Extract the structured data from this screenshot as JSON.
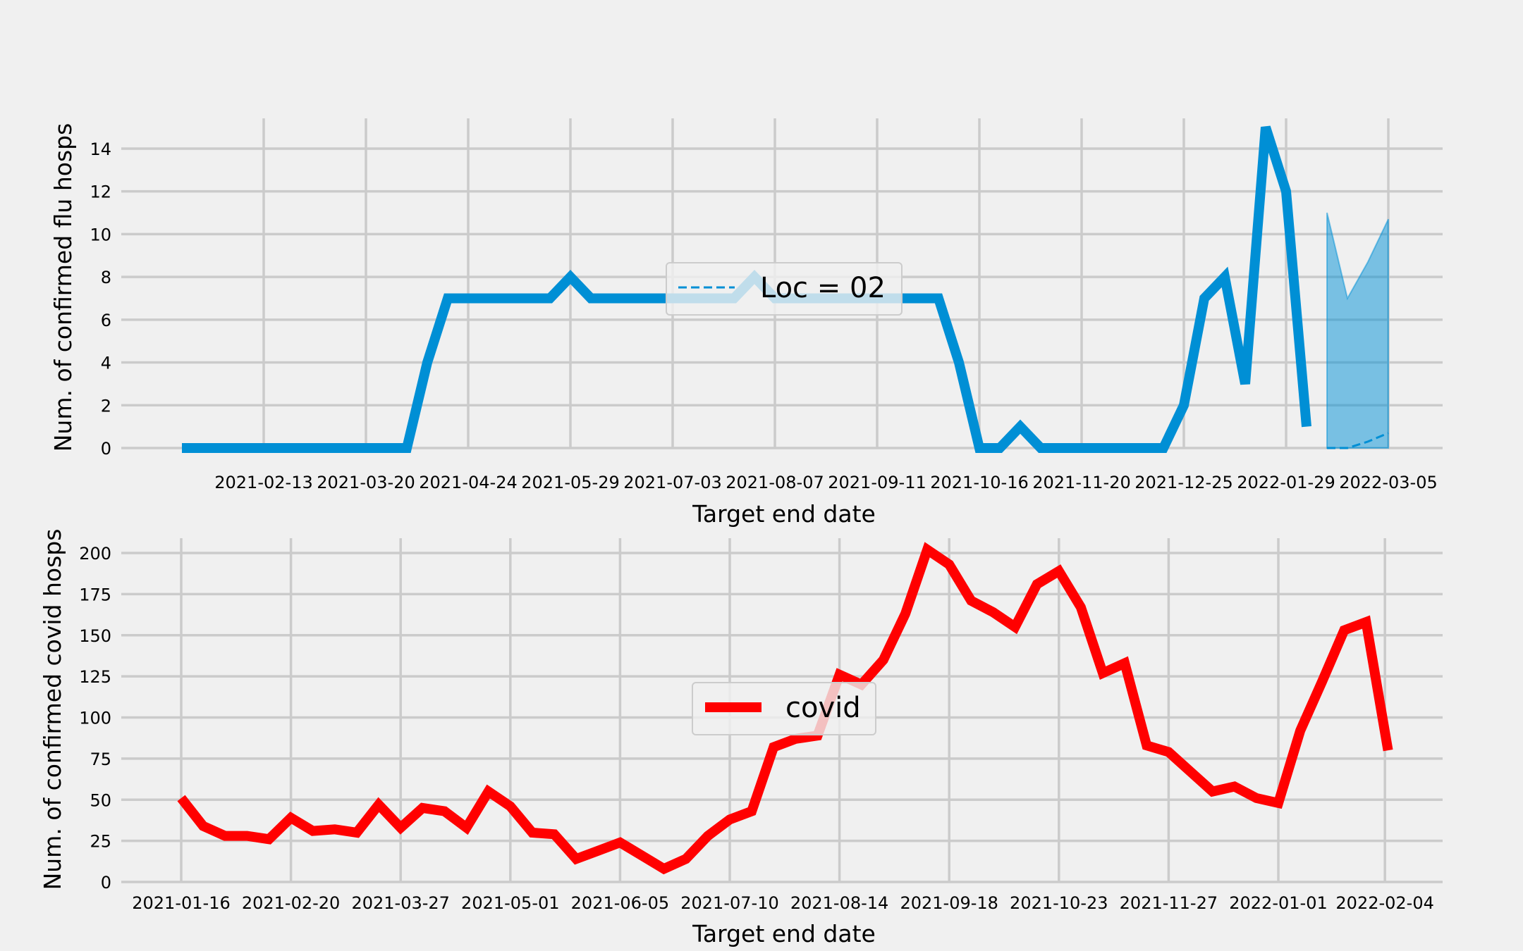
{
  "chart_data": [
    {
      "type": "line",
      "xlabel": "Target end date",
      "ylabel": "Num. of confirmed flu hosps",
      "ylim": [
        0,
        15.5
      ],
      "y_ticks": [
        0,
        2,
        4,
        6,
        8,
        10,
        12,
        14
      ],
      "x_tick_labels": [
        "2021-02-13",
        "2021-03-20",
        "2021-04-24",
        "2021-05-29",
        "2021-07-03",
        "2021-08-07",
        "2021-09-11",
        "2021-10-16",
        "2021-11-20",
        "2021-12-25",
        "2022-01-29",
        "2022-03-05"
      ],
      "grid": true,
      "legend": {
        "position": "center",
        "entries": [
          "Loc = 02"
        ]
      },
      "colors": {
        "observed": "#008fd5",
        "band": "#008fd5"
      },
      "series": [
        {
          "kind": "observed",
          "color": "#008fd5",
          "x": [
            "2021-01-16",
            "2021-01-23",
            "2021-01-30",
            "2021-02-06",
            "2021-02-13",
            "2021-02-20",
            "2021-02-27",
            "2021-03-06",
            "2021-03-13",
            "2021-03-20",
            "2021-03-27",
            "2021-04-03",
            "2021-04-10",
            "2021-04-17",
            "2021-04-24",
            "2021-05-01",
            "2021-05-08",
            "2021-05-15",
            "2021-05-22",
            "2021-05-29",
            "2021-06-05",
            "2021-06-12",
            "2021-06-19",
            "2021-06-26",
            "2021-07-03",
            "2021-07-10",
            "2021-07-17",
            "2021-07-24",
            "2021-07-31",
            "2021-08-07",
            "2021-08-14",
            "2021-08-21",
            "2021-08-28",
            "2021-09-04",
            "2021-09-11",
            "2021-09-18",
            "2021-09-25",
            "2021-10-02",
            "2021-10-09",
            "2021-10-16",
            "2021-10-23",
            "2021-10-30",
            "2021-11-06",
            "2021-11-13",
            "2021-11-20",
            "2021-11-27",
            "2021-12-04",
            "2021-12-11",
            "2021-12-18",
            "2021-12-25",
            "2022-01-01",
            "2022-01-08",
            "2022-01-15",
            "2022-01-22",
            "2022-01-29",
            "2022-02-05"
          ],
          "y": [
            0,
            0,
            0,
            0,
            0,
            0,
            0,
            0,
            0,
            0,
            0,
            0,
            4,
            7,
            7,
            7,
            7,
            7,
            7,
            8,
            7,
            7,
            7,
            7,
            7,
            7,
            7,
            7,
            8,
            7,
            7,
            7,
            7,
            7,
            7,
            7,
            7,
            7,
            4,
            0,
            0,
            1,
            0,
            0,
            0,
            0,
            0,
            0,
            0,
            2,
            7,
            8,
            3,
            15,
            12,
            1
          ]
        },
        {
          "kind": "forecast",
          "name": "Loc = 02",
          "style": "dashed",
          "color": "#008fd5",
          "x": [
            "2022-02-05",
            "2022-02-12",
            "2022-02-19",
            "2022-02-26",
            "2022-03-05"
          ],
          "y": [
            0,
            0,
            0,
            0,
            0
          ],
          "y_forecast_median": [
            0,
            0,
            0,
            0.3,
            0.7
          ],
          "x_forecast": [
            "2022-02-12",
            "2022-02-19",
            "2022-02-26",
            "2022-03-05"
          ],
          "y_forecast": [
            0,
            0,
            0.3,
            0.7
          ]
        },
        {
          "kind": "interval",
          "color": "#008fd5",
          "x": [
            "2022-02-12",
            "2022-02-19",
            "2022-02-26",
            "2022-03-05"
          ],
          "lower": [
            0,
            0,
            0,
            0
          ],
          "upper": [
            11,
            7,
            8.7,
            10.7
          ]
        }
      ]
    },
    {
      "type": "line",
      "xlabel": "Target end date",
      "ylabel": "Num. of confirmed covid hosps",
      "ylim": [
        0,
        210
      ],
      "y_ticks": [
        0,
        25,
        50,
        75,
        100,
        125,
        150,
        175,
        200
      ],
      "x_tick_labels": [
        "2021-01-16",
        "2021-02-20",
        "2021-03-27",
        "2021-05-01",
        "2021-06-05",
        "2021-07-10",
        "2021-08-14",
        "2021-09-18",
        "2021-10-23",
        "2021-11-27",
        "2022-01-01",
        "2022-02-04"
      ],
      "grid": true,
      "legend": {
        "position": "center",
        "entries": [
          "covid"
        ]
      },
      "colors": {
        "covid": "#ff0000"
      },
      "series": [
        {
          "name": "covid",
          "color": "#ff0000",
          "x": [
            "2021-01-16",
            "2021-01-23",
            "2021-01-30",
            "2021-02-06",
            "2021-02-13",
            "2021-02-20",
            "2021-02-27",
            "2021-03-06",
            "2021-03-13",
            "2021-03-20",
            "2021-03-27",
            "2021-04-03",
            "2021-04-10",
            "2021-04-17",
            "2021-04-24",
            "2021-05-01",
            "2021-05-08",
            "2021-05-15",
            "2021-05-22",
            "2021-05-29",
            "2021-06-05",
            "2021-06-12",
            "2021-06-19",
            "2021-06-26",
            "2021-07-03",
            "2021-07-10",
            "2021-07-17",
            "2021-07-24",
            "2021-07-31",
            "2021-08-07",
            "2021-08-14",
            "2021-08-21",
            "2021-08-28",
            "2021-09-04",
            "2021-09-11",
            "2021-09-18",
            "2021-09-25",
            "2021-10-02",
            "2021-10-09",
            "2021-10-16",
            "2021-10-23",
            "2021-10-30",
            "2021-11-06",
            "2021-11-13",
            "2021-11-20",
            "2021-11-27",
            "2021-12-04",
            "2021-12-11",
            "2021-12-18",
            "2021-12-25",
            "2022-01-01",
            "2022-01-08",
            "2022-01-15",
            "2022-01-22",
            "2022-01-29",
            "2022-02-05"
          ],
          "y": [
            51,
            34,
            28,
            28,
            26,
            39,
            31,
            32,
            30,
            47,
            33,
            45,
            43,
            33,
            55,
            46,
            30,
            29,
            14,
            19,
            24,
            16,
            8,
            14,
            28,
            38,
            43,
            82,
            87,
            89,
            126,
            120,
            135,
            163,
            202,
            193,
            171,
            164,
            155,
            181,
            189,
            167,
            127,
            133,
            83,
            79,
            67,
            55,
            58,
            51,
            48,
            92,
            122,
            153,
            158,
            80
          ]
        }
      ]
    }
  ]
}
